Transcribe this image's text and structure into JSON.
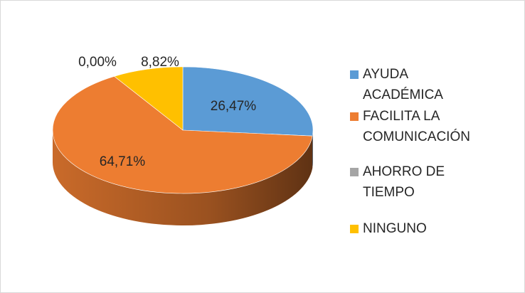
{
  "chart_data": {
    "type": "pie",
    "categories": [
      "AYUDA ACADÉMICA",
      "FACILITA LA COMUNICACIÓN",
      "AHORRO DE TIEMPO",
      "NINGUNO"
    ],
    "values": [
      26.47,
      64.71,
      0,
      8.82
    ],
    "value_labels": [
      "26,47%",
      "64,71%",
      "0,00%",
      "8,82%"
    ],
    "colors": [
      "#5b9bd5",
      "#ed7d31",
      "#a5a5a5",
      "#ffc000"
    ],
    "legend": "right"
  }
}
